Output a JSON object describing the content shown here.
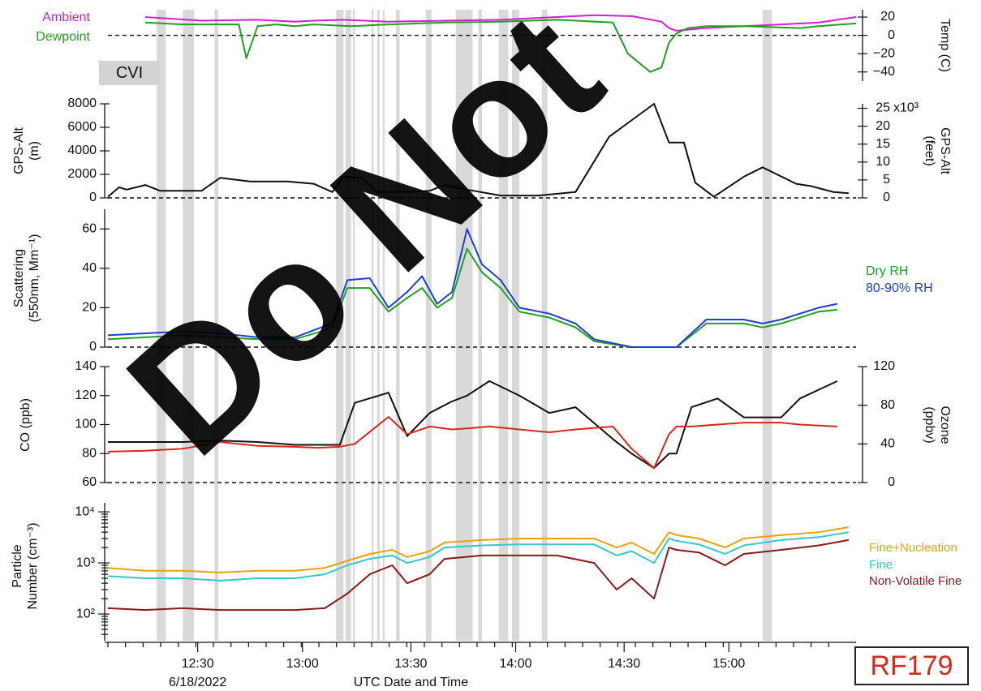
{
  "figure_tag": "RF179",
  "cvi_label": "CVI",
  "watermark": "Do Not",
  "chart_data": [
    {
      "type": "line",
      "panel": "temperature",
      "ylabel": "Temp (C)",
      "yaxis_side": "right",
      "ylim": [
        -50,
        28
      ],
      "yticks": [
        20,
        0,
        -20,
        -40
      ],
      "zero_line": true,
      "series": [
        {
          "name": "Ambient",
          "color": "#d21fd2",
          "x": [
            10,
            25,
            40,
            50,
            55,
            63,
            75,
            90,
            105,
            120,
            130,
            140,
            148,
            150,
            152,
            160,
            170,
            180,
            190,
            200
          ],
          "y": [
            20,
            16,
            17,
            15,
            16,
            17,
            15,
            16,
            17,
            20,
            22,
            21,
            15,
            8,
            5,
            8,
            10,
            12,
            14,
            20
          ]
        },
        {
          "name": "Dewpoint",
          "color": "#21a121",
          "x": [
            10,
            20,
            35,
            37,
            40,
            45,
            50,
            55,
            65,
            75,
            90,
            105,
            120,
            135,
            139,
            145,
            148,
            150,
            152,
            155,
            160,
            165,
            170,
            185,
            190,
            200
          ],
          "y": [
            14,
            12,
            12,
            -25,
            10,
            12,
            10,
            12,
            10,
            12,
            14,
            15,
            17,
            14,
            -20,
            -40,
            -35,
            -8,
            2,
            8,
            10,
            10,
            10,
            8,
            10,
            13
          ]
        }
      ]
    },
    {
      "type": "line",
      "panel": "altitude",
      "ylabel": "GPS-Alt (m)",
      "ylim": [
        0,
        8000
      ],
      "yticks": [
        0,
        2000,
        4000,
        6000,
        8000
      ],
      "right_axis": {
        "label": "GPS-Alt (feet)",
        "ylim": [
          0,
          26247
        ],
        "yticks": [
          0,
          5,
          10,
          15,
          20,
          25
        ],
        "multiplier": "x10³"
      },
      "zero_line": true,
      "series": [
        {
          "name": "GPS-Alt",
          "color": "#111111",
          "x": [
            0,
            3,
            5,
            10,
            14,
            20,
            25,
            30,
            38,
            42,
            48,
            55,
            60,
            63,
            68,
            72,
            80,
            86,
            90,
            96,
            105,
            115,
            125,
            134,
            146,
            150,
            154,
            157,
            162,
            170,
            175,
            184,
            188,
            194,
            198
          ],
          "y": [
            100,
            900,
            700,
            1100,
            600,
            600,
            600,
            1700,
            1400,
            1400,
            1400,
            1200,
            500,
            1800,
            1700,
            500,
            500,
            600,
            1100,
            700,
            200,
            200,
            500,
            5200,
            8000,
            4700,
            4700,
            1300,
            100,
            1800,
            2600,
            1200,
            1000,
            500,
            400
          ]
        }
      ]
    },
    {
      "type": "line",
      "panel": "scattering",
      "ylabel": "Scattering (550nm, Mm⁻¹)",
      "ylim": [
        0,
        70
      ],
      "yticks": [
        0,
        20,
        40,
        60
      ],
      "zero_line": true,
      "series": [
        {
          "name": "Dry RH",
          "color": "#21a121",
          "x": [
            0,
            10,
            20,
            30,
            40,
            50,
            57,
            60,
            64,
            70,
            75,
            80,
            84,
            88,
            92,
            96,
            100,
            105,
            110,
            118,
            125,
            130,
            140,
            148,
            152,
            160,
            165,
            170,
            175,
            180,
            190,
            195
          ],
          "y": [
            4,
            5,
            6,
            5,
            4,
            4,
            8,
            10,
            30,
            30,
            18,
            25,
            30,
            20,
            25,
            50,
            38,
            30,
            18,
            15,
            10,
            3,
            0,
            0,
            0,
            12,
            12,
            12,
            10,
            12,
            18,
            19
          ]
        },
        {
          "name": "80-90% RH",
          "color": "#1e3fd4",
          "x": [
            0,
            10,
            20,
            30,
            40,
            50,
            57,
            60,
            64,
            70,
            75,
            80,
            84,
            88,
            92,
            96,
            100,
            105,
            110,
            118,
            125,
            130,
            140,
            148,
            152,
            160,
            165,
            170,
            175,
            180,
            190,
            195
          ],
          "y": [
            6,
            7,
            8,
            7,
            5,
            5,
            10,
            12,
            34,
            35,
            20,
            28,
            36,
            22,
            28,
            60,
            42,
            34,
            20,
            17,
            12,
            4,
            0,
            0,
            0,
            14,
            14,
            14,
            12,
            14,
            20,
            22
          ]
        }
      ]
    },
    {
      "type": "line",
      "panel": "co_ozone",
      "ylabel": "CO (ppb)",
      "ylim": [
        60,
        140
      ],
      "yticks": [
        60,
        80,
        100,
        120,
        140
      ],
      "right_axis": {
        "label": "Ozone (ppbv)",
        "ylim": [
          0,
          120
        ],
        "yticks": [
          0,
          40,
          80,
          120
        ]
      },
      "zero_line": true,
      "series": [
        {
          "name": "CO",
          "color": "#111111",
          "axis": "left",
          "x": [
            0,
            10,
            20,
            30,
            40,
            50,
            56,
            62,
            66,
            75,
            80,
            86,
            92,
            96,
            102,
            110,
            118,
            125,
            135,
            140,
            146,
            150,
            152,
            156,
            163,
            170,
            180,
            185,
            195
          ],
          "y": [
            88,
            88,
            88,
            89,
            88,
            86,
            86,
            86,
            115,
            122,
            92,
            108,
            116,
            120,
            130,
            120,
            108,
            112,
            90,
            80,
            70,
            80,
            80,
            112,
            118,
            105,
            105,
            118,
            130
          ]
        },
        {
          "name": "Ozone",
          "color": "#d42a1e",
          "axis": "right",
          "x": [
            0,
            10,
            20,
            30,
            40,
            50,
            56,
            62,
            66,
            75,
            80,
            86,
            92,
            96,
            102,
            110,
            118,
            125,
            135,
            140,
            146,
            150,
            152,
            156,
            163,
            170,
            180,
            185,
            195
          ],
          "y": [
            32,
            33,
            35,
            42,
            38,
            37,
            36,
            37,
            40,
            68,
            50,
            58,
            55,
            56,
            58,
            55,
            52,
            55,
            58,
            35,
            15,
            50,
            58,
            58,
            60,
            62,
            62,
            60,
            58
          ]
        }
      ]
    },
    {
      "type": "line",
      "panel": "particles",
      "ylabel": "Particle Number (cm⁻³)",
      "yscale": "log",
      "ylim": [
        30,
        15000
      ],
      "yticks": [
        "10²",
        "10³",
        "10⁴"
      ],
      "series": [
        {
          "name": "Fine+Nucleation",
          "color": "#e8a30e",
          "x": [
            0,
            10,
            20,
            30,
            40,
            50,
            58,
            64,
            70,
            76,
            80,
            86,
            90,
            100,
            110,
            120,
            130,
            136,
            140,
            146,
            150,
            152,
            158,
            165,
            170,
            180,
            190,
            198
          ],
          "y": [
            800,
            700,
            700,
            650,
            700,
            700,
            800,
            1100,
            1500,
            1800,
            1300,
            1700,
            2500,
            2800,
            3000,
            3000,
            3000,
            2000,
            2500,
            1500,
            4000,
            3500,
            3000,
            2000,
            3000,
            3500,
            4000,
            5000
          ]
        },
        {
          "name": "Fine",
          "color": "#33c9c9",
          "x": [
            0,
            10,
            20,
            30,
            40,
            50,
            58,
            64,
            70,
            76,
            80,
            86,
            90,
            100,
            110,
            120,
            130,
            136,
            140,
            146,
            150,
            152,
            158,
            165,
            170,
            180,
            190,
            198
          ],
          "y": [
            550,
            500,
            500,
            450,
            500,
            500,
            600,
            900,
            1200,
            1400,
            1000,
            1300,
            2000,
            2200,
            2300,
            2300,
            2300,
            1400,
            1700,
            1000,
            3000,
            2700,
            2300,
            1500,
            2200,
            2800,
            3200,
            4000
          ]
        },
        {
          "name": "Non-Volatile Fine",
          "color": "#8b1a1a",
          "x": [
            0,
            10,
            20,
            30,
            40,
            50,
            58,
            64,
            70,
            76,
            80,
            86,
            90,
            100,
            110,
            120,
            130,
            136,
            140,
            146,
            150,
            152,
            158,
            165,
            170,
            180,
            190,
            198
          ],
          "y": [
            130,
            120,
            130,
            120,
            120,
            120,
            130,
            250,
            600,
            900,
            400,
            600,
            1200,
            1400,
            1400,
            1400,
            1000,
            300,
            500,
            200,
            2000,
            1800,
            1600,
            900,
            1500,
            1800,
            2200,
            2800
          ]
        }
      ]
    }
  ],
  "time_axis": {
    "label": "UTC Date and Time",
    "ticks": [
      "12:30",
      "13:00",
      "13:30",
      "14:00",
      "14:30",
      "15:00"
    ],
    "date_label": "6/18/2022"
  },
  "cvi_shading_times": [
    [
      13,
      15.5
    ],
    [
      20,
      23
    ],
    [
      28.5,
      29.5
    ],
    [
      61,
      63
    ],
    [
      63.5,
      65
    ],
    [
      65.5,
      66
    ],
    [
      70.5,
      71
    ],
    [
      72,
      72.6
    ],
    [
      73.5,
      74
    ],
    [
      77,
      78
    ],
    [
      85,
      86.5
    ],
    [
      93,
      97.5
    ],
    [
      99,
      100
    ],
    [
      104.5,
      107
    ],
    [
      108,
      110
    ],
    [
      116,
      117.5
    ],
    [
      175,
      177.5
    ]
  ]
}
